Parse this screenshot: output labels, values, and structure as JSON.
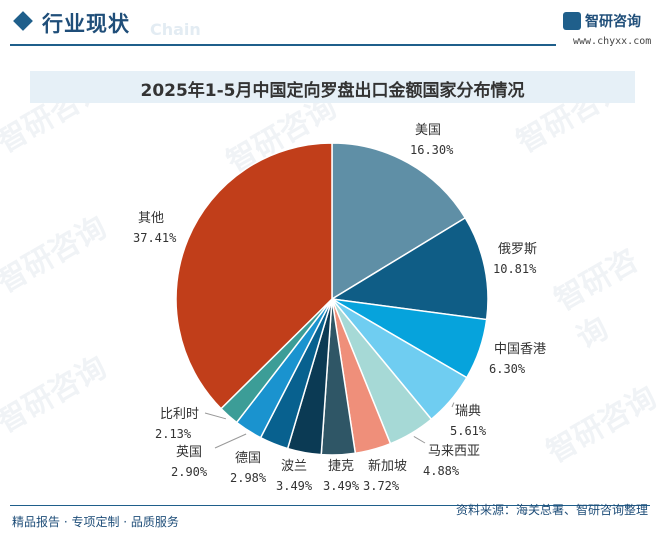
{
  "header": {
    "section_title": "行业现状",
    "ghost_text": "Chain",
    "logo_name": "智研咨询",
    "logo_url": "www.chyxx.com"
  },
  "watermark": "智研咨询",
  "chart_data": {
    "type": "pie",
    "title": "2025年1-5月中国定向罗盘出口金额国家分布情况",
    "start": "12 o'clock",
    "direction": "clockwise",
    "slices": [
      {
        "label": "美国",
        "value": 16.3,
        "value_text": "16.30%",
        "color": "#5f8fa6"
      },
      {
        "label": "俄罗斯",
        "value": 10.81,
        "value_text": "10.81%",
        "color": "#0f5d86"
      },
      {
        "label": "中国香港",
        "value": 6.3,
        "value_text": "6.30%",
        "color": "#06a3dc"
      },
      {
        "label": "瑞典",
        "value": 5.61,
        "value_text": "5.61%",
        "color": "#6fcdf1"
      },
      {
        "label": "马来西亚",
        "value": 4.88,
        "value_text": "4.88%",
        "color": "#a6d9d6"
      },
      {
        "label": "新加坡",
        "value": 3.72,
        "value_text": "3.72%",
        "color": "#ef8f7a"
      },
      {
        "label": "捷克",
        "value": 3.49,
        "value_text": "3.49%",
        "color": "#2f5666"
      },
      {
        "label": "波兰",
        "value": 3.49,
        "value_text": "3.49%",
        "color": "#0b3a54"
      },
      {
        "label": "德国",
        "value": 2.98,
        "value_text": "2.98%",
        "color": "#08618f"
      },
      {
        "label": "英国",
        "value": 2.9,
        "value_text": "2.90%",
        "color": "#1a93cf"
      },
      {
        "label": "比利时",
        "value": 2.13,
        "value_text": "2.13%",
        "color": "#3c9d97"
      },
      {
        "label": "其他",
        "value": 37.41,
        "value_text": "37.41%",
        "color": "#c13e1a"
      }
    ]
  },
  "footer": {
    "left": "精品报告 · 专项定制 · 品质服务",
    "right": "资料来源：海关总署、智研咨询整理"
  }
}
